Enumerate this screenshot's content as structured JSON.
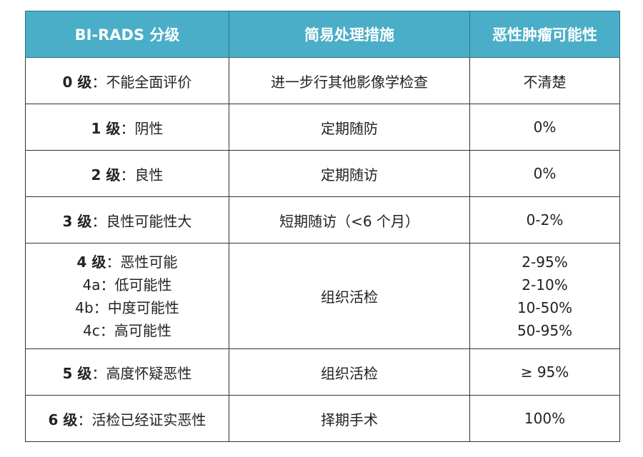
{
  "header_color": "#4aaec8",
  "headers": [
    "BI-RADS 分级",
    "简易处理措施",
    "恶性肿瘤可能性"
  ],
  "rows": [
    {
      "grade": "0 级",
      "desc": "不能全面评价",
      "action": "进一步行其他影像学检查",
      "risk": "不清楚"
    },
    {
      "grade": "1 级",
      "desc": "阴性",
      "action": "定期随防",
      "risk": "0%"
    },
    {
      "grade": "2 级",
      "desc": "良性",
      "action": "定期随访",
      "risk": "0%"
    },
    {
      "grade": "3 级",
      "desc": "良性可能性大",
      "action": "短期随访（<6 个月）",
      "risk": "0-2%"
    },
    {
      "grade": "4 级",
      "desc": "恶性可能",
      "action": "组织活检",
      "risk": "2-95%",
      "sub": [
        {
          "grade": "4a",
          "desc": "低可能性",
          "risk": "2-10%"
        },
        {
          "grade": "4b",
          "desc": "中度可能性",
          "risk": "10-50%"
        },
        {
          "grade": "4c",
          "desc": "高可能性",
          "risk": "50-95%"
        }
      ]
    },
    {
      "grade": "5 级",
      "desc": "高度怀疑恶性",
      "action": "组织活检",
      "risk": "≥ 95%"
    },
    {
      "grade": "6 级",
      "desc": "活检已经证实恶性",
      "action": "择期手术",
      "risk": "100%"
    }
  ],
  "separator": "："
}
